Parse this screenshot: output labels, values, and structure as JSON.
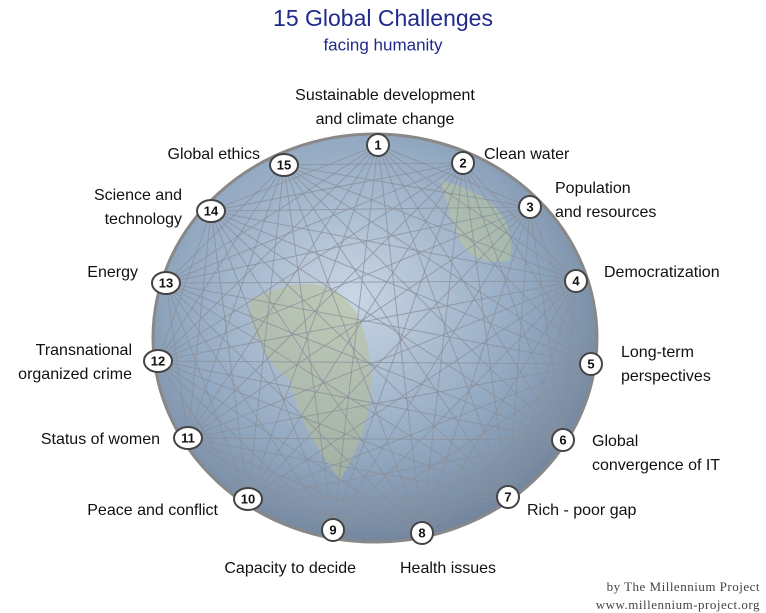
{
  "header": {
    "title": "15 Global Challenges",
    "subtitle": "facing humanity"
  },
  "nodes": [
    {
      "number": "1",
      "label": [
        "Sustainable development",
        "and climate change"
      ]
    },
    {
      "number": "2",
      "label": [
        "Clean water"
      ]
    },
    {
      "number": "3",
      "label": [
        "Population",
        "and resources"
      ]
    },
    {
      "number": "4",
      "label": [
        "Democratization"
      ]
    },
    {
      "number": "5",
      "label": [
        "Long-term",
        "perspectives"
      ]
    },
    {
      "number": "6",
      "label": [
        "Global",
        "convergence of IT"
      ]
    },
    {
      "number": "7",
      "label": [
        "Rich - poor gap"
      ]
    },
    {
      "number": "8",
      "label": [
        "Health issues"
      ]
    },
    {
      "number": "9",
      "label": [
        "Capacity to decide"
      ]
    },
    {
      "number": "10",
      "label": [
        "Peace and conflict"
      ]
    },
    {
      "number": "11",
      "label": [
        "Status of women"
      ]
    },
    {
      "number": "12",
      "label": [
        "Transnational",
        "organized crime"
      ]
    },
    {
      "number": "13",
      "label": [
        "Energy"
      ]
    },
    {
      "number": "14",
      "label": [
        "Science and",
        "technology"
      ]
    },
    {
      "number": "15",
      "label": [
        "Global ethics"
      ]
    }
  ],
  "credit": [
    "by The Millennium Project",
    "www.millennium-project.org"
  ]
}
